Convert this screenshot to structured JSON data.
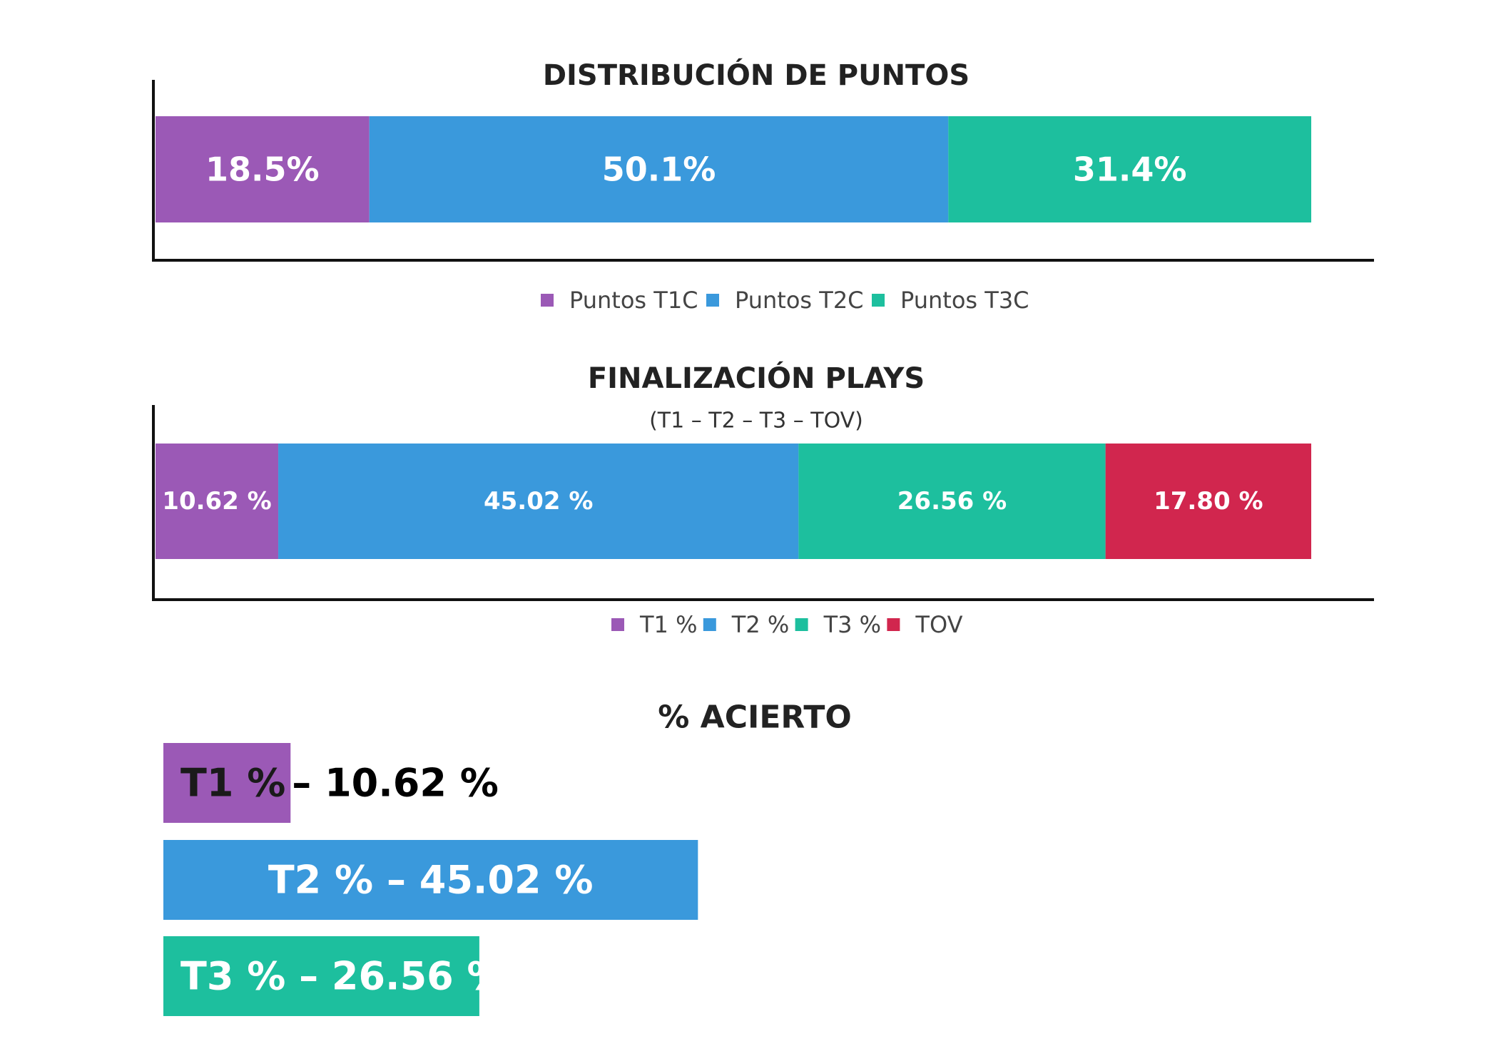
{
  "chart_data": [
    {
      "type": "bar",
      "orientation": "horizontal",
      "stacked": true,
      "title": "DISTRIBUCIÓN DE PUNTOS",
      "legend_position": "bottom",
      "grid": false,
      "xlim": [
        0,
        100
      ],
      "series": [
        {
          "name": "Puntos T1C",
          "value": 18.5,
          "label": "18.5%",
          "color": "#9B59B6"
        },
        {
          "name": "Puntos T2C",
          "value": 50.1,
          "label": "50.1%",
          "color": "#3A99DC"
        },
        {
          "name": "Puntos T3C",
          "value": 31.4,
          "label": "31.4%",
          "color": "#1DBF9E"
        }
      ]
    },
    {
      "type": "bar",
      "orientation": "horizontal",
      "stacked": true,
      "title": "FINALIZACIÓN PLAYS",
      "subtitle": "(T1 – T2 – T3 – TOV)",
      "legend_position": "bottom",
      "grid": false,
      "xlim": [
        0,
        100
      ],
      "series": [
        {
          "name": "T1 %",
          "value": 10.62,
          "label": "10.62 %",
          "color": "#9B59B6"
        },
        {
          "name": "T2 %",
          "value": 45.02,
          "label": "45.02 %",
          "color": "#3A99DC"
        },
        {
          "name": "T3 %",
          "value": 26.56,
          "label": "26.56 %",
          "color": "#1DBF9E"
        },
        {
          "name": "TOV",
          "value": 17.8,
          "label": "17.80 %",
          "color": "#D1264E"
        }
      ]
    },
    {
      "type": "bar",
      "orientation": "horizontal",
      "title": "% ACIERTO",
      "grid": false,
      "categories": [
        "T1 %",
        "T2 %",
        "T3 %"
      ],
      "values": [
        10.62,
        45.02,
        26.56
      ],
      "labels": [
        "T1 %",
        "T2 % – 45.02 %",
        "T3 % – 26.56 %"
      ],
      "outside_labels": [
        "– 10.62 %",
        "",
        ""
      ],
      "colors": [
        "#9B59B6",
        "#3A99DC",
        "#1DBF9E"
      ]
    }
  ]
}
